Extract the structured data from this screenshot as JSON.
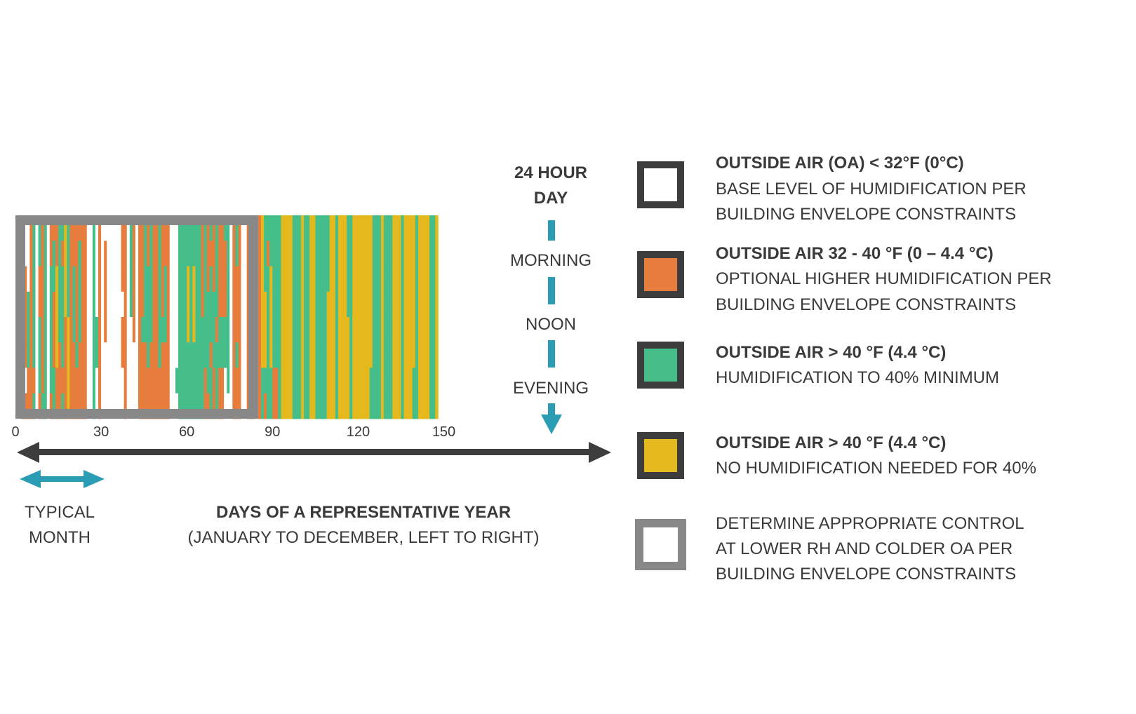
{
  "chart_data": {
    "type": "heatmap",
    "xlabel": "DAYS OF A REPRESENTATIVE YEAR",
    "xlabel_sub": "(JANUARY TO DECEMBER, LEFT TO RIGHT)",
    "x_ticks": [
      "0",
      "30",
      "60",
      "90",
      "120",
      "150"
    ],
    "y_axis": {
      "title_line1": "24 HOUR",
      "title_line2": "DAY",
      "labels": [
        "MORNING",
        "NOON",
        "EVENING"
      ]
    },
    "typical_month": {
      "line1": "TYPICAL",
      "line2": "MONTH",
      "days": 30
    },
    "highlight_range_days": [
      0,
      85
    ],
    "category_codes": {
      "W": "below_32F",
      "O": "32_to_40F",
      "G": "above_40F_humidify",
      "Y": "above_40F_no_humidification"
    },
    "colors": {
      "W": "#ffffff",
      "O": "#E67D3C",
      "G": "#45BE8A",
      "Y": "#E5B91E",
      "frame": "#888888",
      "axis": "#3d3d3d",
      "accent": "#2A9DB5"
    },
    "days_by_3h_blocks": [
      "GWWWGOWW",
      "OOOOWOOW",
      "OOWWOOWO",
      "WWOOOOWO",
      "WWWGGGOO",
      "OOOOOOOO",
      "GGGGGGOG",
      "WWWWWWWW",
      "GGOOGGGO",
      "OOOOOOOG",
      "GGGGGGGG",
      "WWWWWWWW",
      "OOGGGGGO",
      "OGGOOOGG",
      "OOYYYYOO",
      "GGGGGOOO",
      "GOGGGGOG",
      "YYYYOOOO",
      "GGGGYYYY",
      "OOOOOOOO",
      "OOGGGOOO",
      "OOOOOGOO",
      "OGGGGOOO",
      "OOOOOOOO",
      "OOOOOOOO",
      "WWWWWWWW",
      "WWWWWWWW",
      "GGGGGGGG",
      "WWWWGGWW",
      "OOOOOOOO",
      "WWWWWWWW",
      "WOOOOWWW",
      "WWWWWWWW",
      "WWWWWWWW",
      "WWWWWWWW",
      "WWWWWWWW",
      "WWWWWWWW",
      "OOOWOOWW",
      "OOOOOOOO",
      "WWWWWWWW",
      "GGGGWWWW",
      "OOOOOWWW",
      "WWWWWWWW",
      "OOOOOOOO",
      "OOOOGOOO",
      "GGGGGOOO",
      "OOGGGGOO",
      "GGGGGOOO",
      "OOOOOOOO",
      "OOOOOOOO",
      "GGGGGGOO",
      "OOOOGOOO",
      "OOGGGOOO",
      "OOOOOOOO",
      "WWWWWWWW",
      "WWWWWWWW",
      "WWWWWWGW",
      "GGGGGGGG",
      "GGGGGGGG",
      "GGGGGGGG",
      "GGYYYGGG",
      "GGGGGGGG",
      "GGYYYGGG",
      "GGGGGGGG",
      "GGGGGGGG",
      "OOOOGGGG",
      "GGGGGGOO",
      "OOOGGGGO",
      "GOGGGOGG",
      "OOOGGGOO",
      "GGGGOGGG",
      "OOOOGGOO",
      "OOOOGGOO",
      "GOOOGGWW",
      "GGGGGGGW",
      "WWWWWWWW",
      "OOOOOOOO",
      "GGOOOGOO",
      "OOOOOOOO",
      "WWWWWWWW",
      "WWWWWWWW",
      "OOOOOOOO",
      "GGGGGGGG",
      "OOOOOOOO",
      "WWWWWWWW",
      "OOOOOOOO",
      "YYYYYYGG",
      "GGGYYYGO",
      "GOGGGGGG",
      "GGYYYYGG",
      "GGGGGGOO",
      "GGGGGGOO",
      "GGGGGGGG",
      "YYYYYYYY",
      "YYYYYYYY",
      "YYYYYYYY",
      "YYYYYYYY",
      "GGGGGGGG",
      "GGGGGGGG",
      "GGGGGGGG",
      "YYYYYYYY",
      "GGGGGGGG",
      "GGGGGGGG",
      "YYYYYYYY",
      "YYYYYYYY",
      "GGGGGGGG",
      "GGGGGGGG",
      "GGGGGGGG",
      "GGGGGGGG",
      "GGGYYYYY",
      "YYYYYYYY",
      "YYYYYYYY",
      "GGGGGGGG",
      "YYYYYYYY",
      "YYYYYYYY",
      "YYYYYYYY",
      "GGGGYYYY",
      "GGGGGGGG",
      "YYYYYYYY",
      "YYYYYYYY",
      "YYYYYYYY",
      "YYYYYYYY",
      "YYYYYYYY",
      "YYYYYYYY",
      "YYYYYYGG",
      "GGGGGGGG",
      "GGGGGGGG",
      "GGGGGGGG",
      "YYYYYYYY",
      "GGGGGGGG",
      "GGGGGGGG",
      "GGGGGGGG",
      "YYYYYYYY",
      "YYYYYYYY",
      "YYYYYYYY",
      "GGGGGGGG",
      "YYYYYYYY",
      "YYYYYYYY",
      "YYYYYYYY",
      "YYYYYYGG",
      "GGGGGGGG",
      "YYYYYYYY",
      "YYYYYYYY",
      "YYYYYYYY",
      "YYYYYYYY",
      "GGGGGGGG",
      "GGGGGGGG",
      "YYYYYYYY"
    ]
  },
  "legend": [
    {
      "code": "W",
      "title": "OUTSIDE AIR (OA) < 32°F (0°C)",
      "lines": [
        "BASE LEVEL OF HUMIDIFICATION PER",
        "BUILDING ENVELOPE CONSTRAINTS"
      ]
    },
    {
      "code": "O",
      "title": "OUTSIDE AIR 32 - 40 °F (0 – 4.4 °C)",
      "lines": [
        "OPTIONAL HIGHER HUMIDIFICATION PER",
        "BUILDING ENVELOPE CONSTRAINTS"
      ]
    },
    {
      "code": "G",
      "title": "OUTSIDE AIR > 40 °F (4.4 °C)",
      "lines": [
        "HUMIDIFICATION TO 40% MINIMUM"
      ]
    },
    {
      "code": "Y",
      "title": "OUTSIDE AIR > 40 °F (4.4 °C)",
      "lines": [
        "NO HUMIDIFICATION NEEDED FOR 40%"
      ]
    },
    {
      "code": "frame",
      "title": "",
      "lines": [
        "DETERMINE APPROPRIATE CONTROL",
        "AT LOWER RH AND COLDER OA PER",
        "BUILDING ENVELOPE CONSTRAINTS"
      ]
    }
  ]
}
